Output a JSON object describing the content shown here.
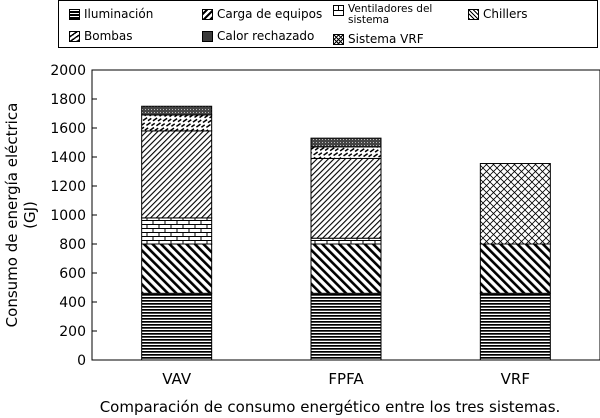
{
  "chart_data": {
    "type": "bar",
    "stacked": true,
    "categories": [
      "VAV",
      "FPFA",
      "VRF"
    ],
    "series": [
      {
        "name": "Iluminación",
        "values": [
          460,
          460,
          460
        ],
        "pattern": "hlines"
      },
      {
        "name": "Carga de equipos",
        "values": [
          340,
          340,
          340
        ],
        "pattern": "diag"
      },
      {
        "name": "Ventiladores del sistema",
        "values": [
          180,
          40,
          0
        ],
        "pattern": "brick"
      },
      {
        "name": "Chillers",
        "values": [
          600,
          550,
          0
        ],
        "pattern": "diagfine"
      },
      {
        "name": "Bombas",
        "values": [
          110,
          80,
          0
        ],
        "pattern": "dashdiag"
      },
      {
        "name": "Calor rechazado",
        "values": [
          60,
          60,
          0
        ],
        "pattern": "dots"
      },
      {
        "name": "Sistema VRF",
        "values": [
          0,
          0,
          555
        ],
        "pattern": "cross"
      }
    ],
    "ylabel_lines": [
      "Consumo de energía eléctrica",
      "(GJ)"
    ],
    "xlabel": "Comparación de consumo energético entre los tres sistemas.",
    "ylim": [
      0,
      2000
    ],
    "yticks": [
      0,
      200,
      400,
      600,
      800,
      1000,
      1200,
      1400,
      1600,
      1800,
      2000
    ],
    "grid": false,
    "legend_position": "top"
  }
}
